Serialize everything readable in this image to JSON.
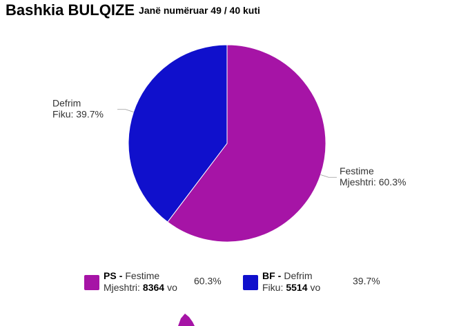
{
  "chart_data": {
    "type": "pie",
    "title": "Bashkia BULQIZE",
    "subtitle": "Janë numëruar 49 / 40 kuti",
    "categories": [
      "Festime Mjeshtri",
      "Defrim Fiku"
    ],
    "values": [
      60.3,
      39.7
    ],
    "value_labels": [
      "60.3%",
      "39.7%"
    ],
    "colors": [
      "#a614a6",
      "#1010cc"
    ],
    "slice_labels": [
      [
        "Festime",
        "Mjeshtri: 60.3%"
      ],
      [
        "Defrim",
        "Fiku: 39.7%"
      ]
    ],
    "legend": [
      {
        "party": "PS",
        "separator": "-",
        "name_lines": [
          "Festime",
          "Mjeshtri:"
        ],
        "votes": 8364,
        "unit": "vo",
        "share_label": "60.3%"
      },
      {
        "party": "BF",
        "separator": "-",
        "name_lines": [
          "Defrim",
          "Fiku:"
        ],
        "votes": 5514,
        "unit": "vo",
        "share_label": "39.7%"
      }
    ]
  }
}
